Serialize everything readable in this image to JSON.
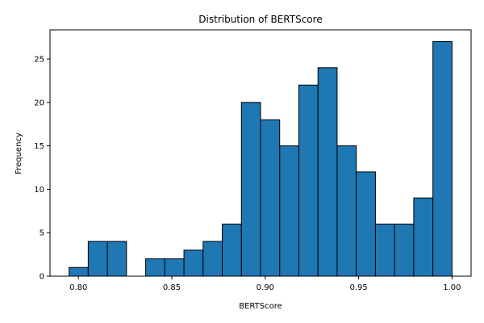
{
  "chart_data": {
    "type": "bar",
    "title": "Distribution of BERTScore",
    "xlabel": "BERTScore",
    "ylabel": "Frequency",
    "bin_start": 0.795,
    "bin_width": 0.01025,
    "values": [
      1,
      4,
      4,
      0,
      2,
      2,
      3,
      4,
      6,
      20,
      18,
      15,
      22,
      24,
      15,
      12,
      6,
      6,
      9,
      27
    ],
    "xlim": [
      0.7848,
      1.0102
    ],
    "ylim": [
      0,
      28.35
    ],
    "xticks": [
      0.8,
      0.85,
      0.9,
      0.95,
      1.0
    ],
    "xtick_labels": [
      "0.80",
      "0.85",
      "0.90",
      "0.95",
      "1.00"
    ],
    "yticks": [
      0,
      5,
      10,
      15,
      20,
      25
    ],
    "ytick_labels": [
      "0",
      "5",
      "10",
      "15",
      "20",
      "25"
    ],
    "bar_color": "#1f77b4",
    "edge_color": "#000000",
    "grid": false,
    "legend": "none"
  }
}
